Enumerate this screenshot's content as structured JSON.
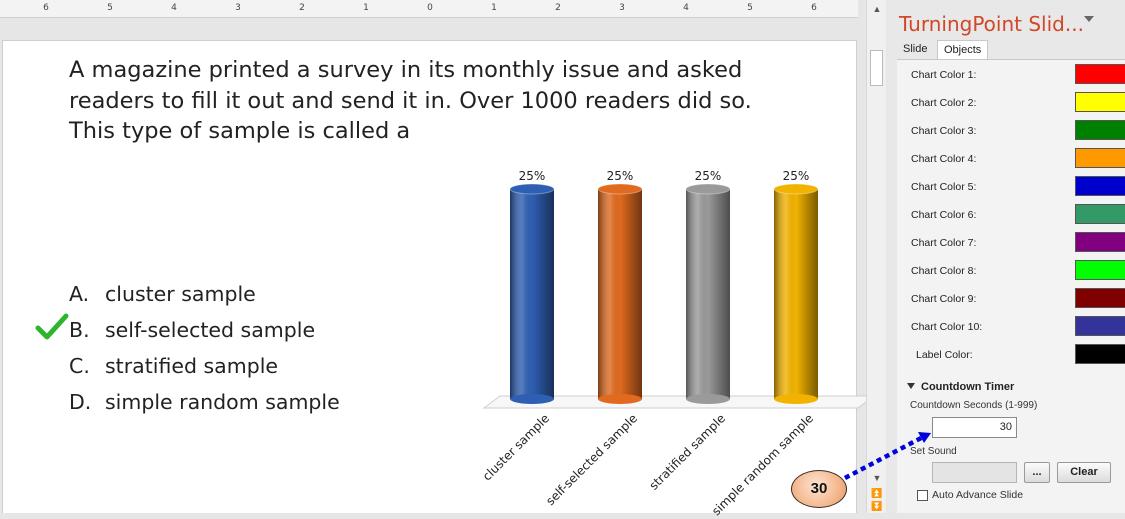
{
  "ruler": {
    "labels": [
      "6",
      "5",
      "4",
      "3",
      "2",
      "1",
      "0",
      "1",
      "2",
      "3",
      "4",
      "5",
      "6"
    ]
  },
  "slide": {
    "question": "A magazine printed a survey in its monthly issue and asked\nreaders to fill it out and send it in. Over 1000 readers did so.\nThis type of sample is called a",
    "answers": [
      {
        "letter": "A.",
        "text": "cluster sample"
      },
      {
        "letter": "B.",
        "text": "self-selected sample"
      },
      {
        "letter": "C.",
        "text": "stratified sample"
      },
      {
        "letter": "D.",
        "text": "simple random sample"
      }
    ],
    "correct_answer_icon": "checkmark-icon",
    "correct_color": "#2db52d"
  },
  "chart_data": {
    "type": "bar",
    "categories": [
      "cluster sample",
      "self-selected sample",
      "stratified sample",
      "simple random sample"
    ],
    "values": [
      25,
      25,
      25,
      25
    ],
    "data_labels": [
      "25%",
      "25%",
      "25%",
      "25%"
    ],
    "colors": [
      "#2f5fb3",
      "#e06a1f",
      "#9a9a9a",
      "#f2b300"
    ],
    "style": "3d-cylinder",
    "ylim": [
      0,
      25
    ]
  },
  "pane": {
    "title": "TurningPoint Slid...",
    "tabs": [
      "Slide",
      "Objects"
    ],
    "active_tab": "Objects",
    "chart_colors": [
      {
        "label": "Chart Color 1:",
        "color": "#ff0000"
      },
      {
        "label": "Chart Color 2:",
        "color": "#ffff00"
      },
      {
        "label": "Chart Color 3:",
        "color": "#008000"
      },
      {
        "label": "Chart Color 4:",
        "color": "#ff9900"
      },
      {
        "label": "Chart Color 5:",
        "color": "#0000cc"
      },
      {
        "label": "Chart Color 6:",
        "color": "#339966"
      },
      {
        "label": "Chart Color 7:",
        "color": "#800080"
      },
      {
        "label": "Chart Color 8:",
        "color": "#00ff00"
      },
      {
        "label": "Chart Color 9:",
        "color": "#800000"
      },
      {
        "label": "Chart Color 10:",
        "color": "#333399"
      },
      {
        "label": "Label Color:",
        "color": "#000000"
      }
    ],
    "countdown": {
      "section_title": "Countdown Timer",
      "seconds_label": "Countdown Seconds (1-999)",
      "seconds_value": "30",
      "set_sound_label": "Set Sound",
      "browse_label": "...",
      "clear_label": "Clear",
      "auto_advance_label": "Auto Advance Slide"
    }
  },
  "countdown_bubble": {
    "value": "30",
    "arrow_color": "#0000dd"
  }
}
